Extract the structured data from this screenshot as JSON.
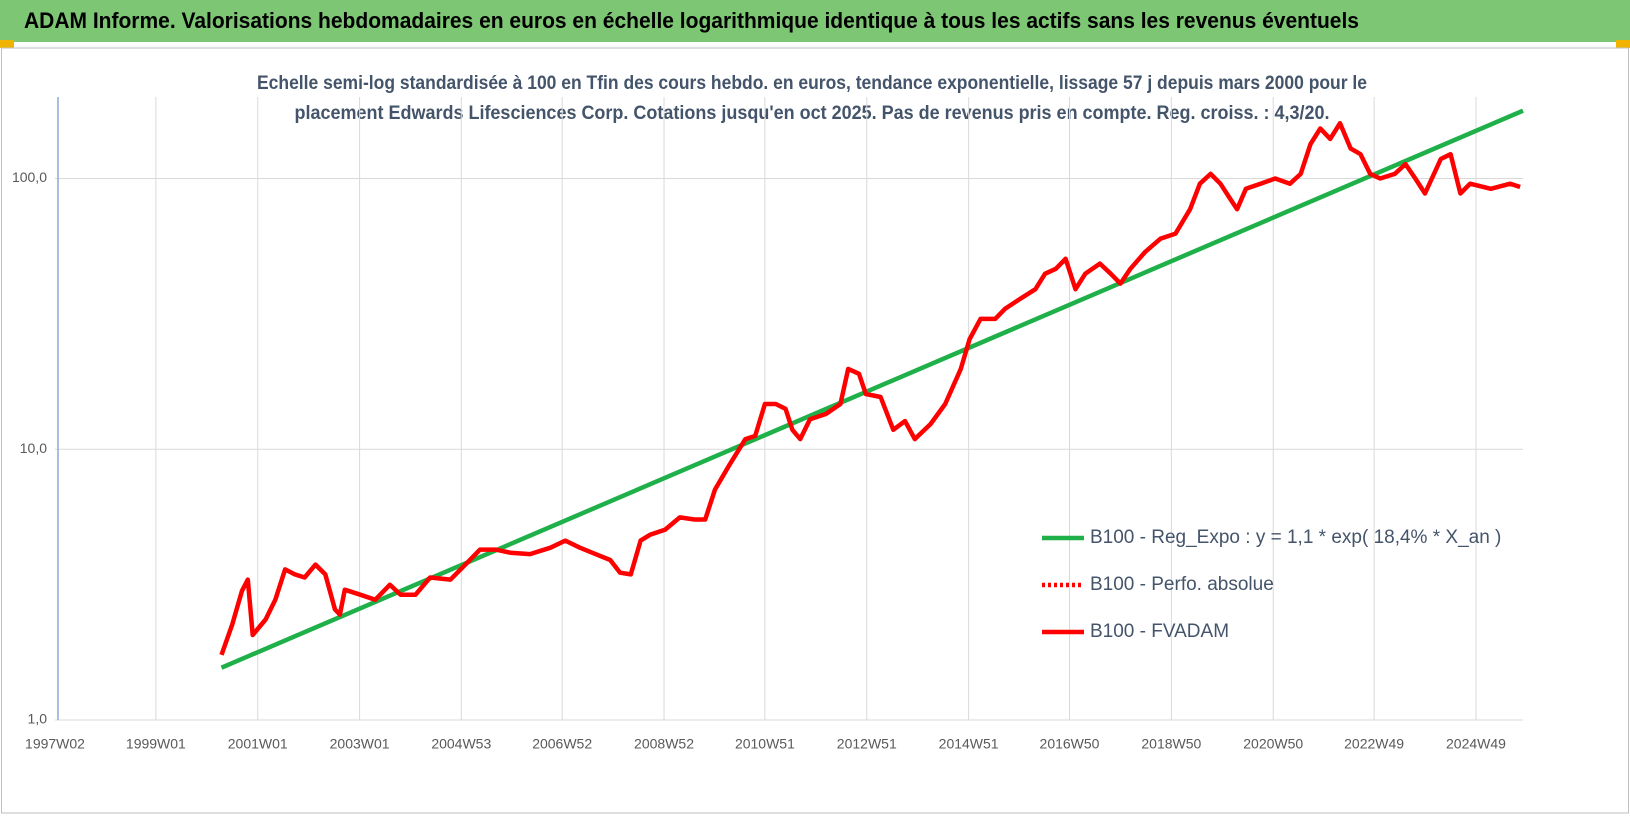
{
  "header": {
    "title": "ADAM Informe. Valorisations hebdomadaires en euros en échelle logarithmique identique à tous les actifs sans les revenus éventuels"
  },
  "chart_data": {
    "type": "line",
    "subtitle": [
      "Echelle semi-log standardisée à 100 en Tfin des cours hebdo. en euros, tendance exponentielle, lissage 57 j depuis mars 2000 pour le",
      "placement Edwards Lifesciences Corp. Cotations jusqu'en oct 2025. Pas de revenus pris en compte. Reg. croiss. : 4,3/20."
    ],
    "log_y": true,
    "grid": true,
    "legend": "right",
    "xlim": [
      "1997W02",
      "2025W45"
    ],
    "xticks": [
      "1997W02",
      "1999W01",
      "2001W01",
      "2003W01",
      "2004W53",
      "2006W52",
      "2008W52",
      "2010W51",
      "2012W51",
      "2014W51",
      "2016W50",
      "2018W50",
      "2020W50",
      "2022W49",
      "2024W49"
    ],
    "ylim": [
      1,
      200
    ],
    "yticks": [
      {
        "value": 1,
        "label": "1,0"
      },
      {
        "value": 10,
        "label": "10,0"
      },
      {
        "value": 100,
        "label": "100,0"
      }
    ],
    "series": [
      {
        "name": "B100 - Reg_Expo : y = 1,1 * exp( 18,4% *  X_an )",
        "color": "#1fb04a",
        "style": "solid",
        "x": [
          "2000W16",
          "2025W45"
        ],
        "values": [
          1.56,
          178
        ]
      },
      {
        "name": "B100 - Perfo. absolue",
        "color": "#ff0000",
        "style": "dotted",
        "x": [],
        "values": []
      },
      {
        "name": "B100 - FVADAM",
        "color": "#ff0000",
        "style": "solid",
        "x": [
          "2000W16",
          "2000W27",
          "2000W37",
          "2000W43",
          "2000W48",
          "2001W09",
          "2001W19",
          "2001W29",
          "2001W39",
          "2001W49",
          "2002W08",
          "2002W18",
          "2002W28",
          "2002W33",
          "2002W38",
          "2003W02",
          "2003W17",
          "2003W32",
          "2003W43",
          "2004W06",
          "2004W21",
          "2004W42",
          "2005W05",
          "2005W20",
          "2005W36",
          "2005W51",
          "2006W19",
          "2006W40",
          "2007W03",
          "2007W18",
          "2007W34",
          "2007W49",
          "2008W07",
          "2008W18",
          "2008W28",
          "2008W38",
          "2009W01",
          "2009W16",
          "2009W31",
          "2009W42",
          "2009W52",
          "2010W15",
          "2010W31",
          "2010W41",
          "2010W51",
          "2011W10",
          "2011W20",
          "2011W27",
          "2011W35",
          "2011W45",
          "2012W09",
          "2012W24",
          "2012W32",
          "2012W43",
          "2012W50",
          "2013W13",
          "2013W26",
          "2013W38",
          "2013W48",
          "2014W12",
          "2014W27",
          "2014W43",
          "2014W52",
          "2015W11",
          "2015W26",
          "2015W36",
          "2015W52",
          "2016W15",
          "2016W25",
          "2016W36",
          "2016W46",
          "2017W04",
          "2017W14",
          "2017W29",
          "2017W40",
          "2017W50",
          "2018W08",
          "2018W23",
          "2018W39",
          "2019W02",
          "2019W17",
          "2019W27",
          "2019W38",
          "2019W48",
          "2020W06",
          "2020W13",
          "2020W22",
          "2020W37",
          "2020W52",
          "2021W15",
          "2021W26",
          "2021W36",
          "2021W46",
          "2022W04",
          "2022W14",
          "2022W25",
          "2022W35",
          "2022W45",
          "2023W03",
          "2023W18",
          "2023W29",
          "2023W39",
          "2023W49",
          "2024W13",
          "2024W23",
          "2024W33",
          "2024W43",
          "2025W12",
          "2025W32",
          "2025W42"
        ],
        "values": [
          1.74,
          2.25,
          3.0,
          3.3,
          2.06,
          2.35,
          2.78,
          3.6,
          3.45,
          3.36,
          3.75,
          3.45,
          2.56,
          2.45,
          3.03,
          2.9,
          2.78,
          3.16,
          2.9,
          2.9,
          3.36,
          3.3,
          3.75,
          4.26,
          4.26,
          4.15,
          4.1,
          4.33,
          4.6,
          4.33,
          4.1,
          3.9,
          3.5,
          3.45,
          4.6,
          4.84,
          5.05,
          5.6,
          5.5,
          5.5,
          7.1,
          8.8,
          10.9,
          11.2,
          14.7,
          14.7,
          14.1,
          11.8,
          10.9,
          12.9,
          13.5,
          14.7,
          19.8,
          19,
          16,
          15.6,
          11.8,
          12.7,
          10.9,
          12.4,
          14.7,
          19.8,
          25.5,
          30.3,
          30.3,
          33,
          36,
          39,
          44.5,
          46.4,
          50.5,
          39,
          44.5,
          48.5,
          44.5,
          40.9,
          46.4,
          53.5,
          60,
          62.6,
          77,
          95.7,
          104,
          95.7,
          84,
          77,
          91.6,
          95.7,
          100,
          95.7,
          104,
          134,
          153,
          140,
          160,
          129,
          123,
          104,
          100,
          104,
          113,
          100,
          88,
          118,
          123,
          88,
          95.7,
          91.6,
          95.7,
          93
        ]
      }
    ]
  }
}
